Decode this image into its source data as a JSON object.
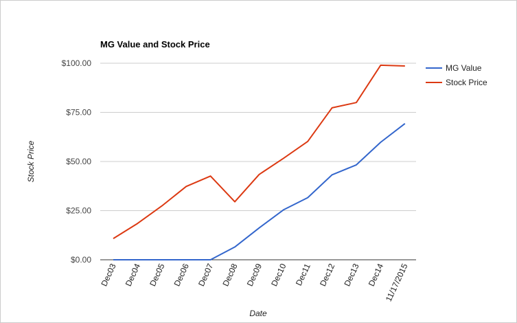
{
  "chart_data": {
    "type": "line",
    "title": "MG Value and Stock Price",
    "xlabel": "Date",
    "ylabel": "Stock Price",
    "categories": [
      "Dec03",
      "Dec04",
      "Dec05",
      "Dec06",
      "Dec07",
      "Dec08",
      "Dec09",
      "Dec10",
      "Dec11",
      "Dec12",
      "Dec13",
      "Dec14",
      "11/17/2015"
    ],
    "ylim": [
      0,
      100
    ],
    "yticks": [
      0,
      25,
      50,
      75,
      100
    ],
    "ytick_labels": [
      "$0.00",
      "$25.00",
      "$50.00",
      "$75.00",
      "$100.00"
    ],
    "grid": true,
    "legend_position": "right",
    "series": [
      {
        "name": "MG Value",
        "color": "#3366cc",
        "values": [
          0,
          0,
          0,
          0,
          0,
          6.5,
          16.2,
          25.4,
          31.6,
          43.2,
          48.3,
          59.8,
          69.3
        ]
      },
      {
        "name": "Stock Price",
        "color": "#dc3912",
        "values": [
          10.8,
          18.5,
          27.4,
          37.3,
          42.6,
          29.5,
          43.4,
          51.6,
          60.2,
          77.3,
          80.0,
          99.0,
          98.6
        ]
      }
    ]
  }
}
